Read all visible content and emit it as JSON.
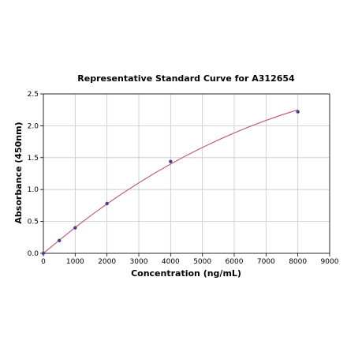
{
  "chart_data": {
    "type": "scatter",
    "title": "Representative Standard Curve for A312654",
    "xlabel": "Concentration (ng/mL)",
    "ylabel": "Absorbance (450nm)",
    "xlim": [
      0,
      9000
    ],
    "ylim": [
      0,
      2.5
    ],
    "x_ticks": [
      "0",
      "1000",
      "2000",
      "3000",
      "4000",
      "5000",
      "6000",
      "7000",
      "8000",
      "9000"
    ],
    "y_ticks": [
      "0.0",
      "0.5",
      "1.0",
      "1.5",
      "2.0",
      "2.5"
    ],
    "grid": true,
    "series": [
      {
        "points": [
          {
            "x": 0,
            "y": 0.0
          },
          {
            "x": 500,
            "y": 0.2
          },
          {
            "x": 1000,
            "y": 0.4
          },
          {
            "x": 2000,
            "y": 0.78
          },
          {
            "x": 4000,
            "y": 1.44
          },
          {
            "x": 8000,
            "y": 2.22
          }
        ],
        "color": "#4b3e8c"
      }
    ],
    "fit_curve": {
      "x": [
        0,
        500,
        1000,
        1500,
        2000,
        2500,
        3000,
        3500,
        4000,
        4500,
        5000,
        5500,
        6000,
        6500,
        7000,
        7500,
        8000
      ],
      "y": [
        0.0,
        0.205,
        0.405,
        0.595,
        0.775,
        0.945,
        1.105,
        1.258,
        1.4,
        1.535,
        1.66,
        1.778,
        1.888,
        1.99,
        2.085,
        2.172,
        2.25
      ],
      "color": "#c0607a"
    }
  }
}
